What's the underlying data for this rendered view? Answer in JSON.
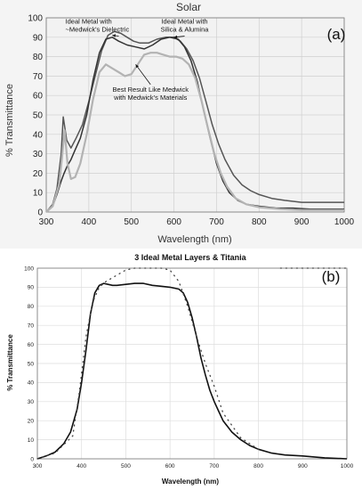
{
  "chart_data": [
    {
      "panel_label": "(a)",
      "type": "line",
      "title": "Solar",
      "xlabel": "Wavelength (nm)",
      "ylabel": "% Transmittance",
      "xlim": [
        300,
        1000
      ],
      "ylim": [
        0,
        100
      ],
      "x_ticks": [
        300,
        400,
        500,
        600,
        700,
        800,
        900,
        1000
      ],
      "y_ticks": [
        0,
        10,
        20,
        30,
        40,
        50,
        60,
        70,
        80,
        90,
        100
      ],
      "grid": true,
      "plot_background": "#f2f2f2",
      "colors": {
        "series_a": "#555555",
        "series_b": "#333333",
        "series_c": "#b3b3b3"
      },
      "annotations": [
        {
          "text": [
            "Ideal Metal with",
            "~Medwick's Dielectric"
          ],
          "x": 345,
          "y": 97,
          "arrow_to": [
            455,
            91
          ]
        },
        {
          "text": [
            "Ideal Metal with",
            "Silica & Alumina"
          ],
          "x": 625,
          "y": 97,
          "arrow_to": [
            600,
            90
          ]
        },
        {
          "text": [
            "Best Result Like Medwick",
            "with Medwick's Materials"
          ],
          "x": 545,
          "y": 62,
          "arrow_to": [
            510,
            76
          ]
        }
      ],
      "series": [
        {
          "x": [
            300,
            315,
            325,
            335,
            340,
            348,
            358,
            370,
            385,
            400,
            415,
            430,
            445,
            460,
            475,
            490,
            505,
            520,
            540,
            560,
            580,
            600,
            615,
            630,
            645,
            660,
            675,
            690,
            705,
            720,
            740,
            760,
            780,
            800,
            830,
            860,
            900,
            950,
            1000
          ],
          "y": [
            0,
            4,
            12,
            30,
            49,
            37,
            33,
            38,
            45,
            57,
            70,
            83,
            91,
            93,
            92,
            90,
            88,
            87,
            87,
            89,
            90,
            90,
            88,
            84,
            78,
            69,
            57,
            45,
            35,
            27,
            19,
            14,
            11,
            9,
            7,
            6,
            5,
            5,
            5
          ]
        },
        {
          "x": [
            300,
            315,
            325,
            335,
            342,
            350,
            358,
            368,
            380,
            395,
            410,
            425,
            440,
            455,
            470,
            490,
            510,
            530,
            550,
            570,
            590,
            610,
            625,
            640,
            655,
            670,
            685,
            700,
            715,
            730,
            750,
            770,
            800,
            840,
            880,
            920,
            960,
            1000
          ],
          "y": [
            0,
            3,
            9,
            16,
            20,
            24,
            27,
            32,
            38,
            50,
            68,
            82,
            89,
            90,
            88,
            86,
            85,
            84,
            86,
            89,
            90,
            89,
            85,
            78,
            67,
            52,
            38,
            25,
            16,
            10,
            6,
            4,
            3,
            2,
            2,
            1.5,
            1.5,
            1.5
          ]
        },
        {
          "x": [
            300,
            315,
            322,
            330,
            337,
            343,
            350,
            358,
            368,
            380,
            395,
            410,
            425,
            440,
            455,
            470,
            485,
            500,
            515,
            530,
            545,
            560,
            575,
            590,
            605,
            620,
            635,
            650,
            665,
            680,
            695,
            710,
            725,
            745,
            770,
            800,
            850,
            900,
            950,
            1000
          ],
          "y": [
            0,
            3,
            8,
            14,
            28,
            42,
            25,
            17,
            18,
            25,
            40,
            58,
            72,
            76,
            74,
            72,
            70,
            71,
            76,
            81,
            82,
            82,
            81,
            80,
            80,
            79,
            76,
            69,
            57,
            43,
            30,
            20,
            13,
            7,
            4,
            2.5,
            1.5,
            1,
            1,
            1
          ]
        }
      ]
    },
    {
      "panel_label": "(b)",
      "type": "line",
      "title": "3 Ideal Metal Layers & Titania",
      "xlabel": "Wavelength (nm)",
      "ylabel": "% Transmittance",
      "xlim": [
        300,
        1000
      ],
      "ylim": [
        0,
        100
      ],
      "x_ticks": [
        300,
        400,
        500,
        600,
        700,
        800,
        900,
        1000
      ],
      "y_ticks": [
        0,
        10,
        20,
        30,
        40,
        50,
        60,
        70,
        80,
        90,
        100
      ],
      "grid": true,
      "colors": {
        "solid": "#111111",
        "dotted": "#444444"
      },
      "series": [
        {
          "style": "solid",
          "x": [
            300,
            320,
            340,
            360,
            375,
            390,
            400,
            410,
            420,
            430,
            440,
            450,
            460,
            470,
            480,
            500,
            520,
            540,
            560,
            580,
            600,
            620,
            630,
            640,
            650,
            660,
            670,
            680,
            690,
            700,
            710,
            720,
            740,
            760,
            780,
            800,
            830,
            860,
            900,
            950,
            1000
          ],
          "y": [
            0,
            1.5,
            3.5,
            8,
            14,
            26,
            40,
            57,
            76,
            87,
            91,
            92,
            91.5,
            91,
            91,
            91.5,
            92,
            92,
            91,
            90.5,
            90,
            89,
            87,
            82,
            74,
            64,
            53,
            44,
            36,
            30,
            25,
            20,
            14,
            10,
            7,
            5,
            3,
            2,
            1.5,
            0.5,
            0
          ]
        },
        {
          "style": "dotted",
          "x": [
            300,
            340,
            380,
            395,
            410,
            425,
            440,
            455,
            470,
            485,
            500,
            520,
            540,
            560,
            580,
            600,
            620,
            640,
            660,
            680,
            700,
            720,
            760,
            800,
            850,
            860,
            880,
            900,
            920,
            950,
            1000
          ],
          "y": [
            0,
            3,
            12,
            35,
            64,
            82,
            90,
            93,
            95,
            97,
            99,
            100,
            100,
            100,
            100,
            99,
            93,
            80,
            64,
            50,
            38,
            24,
            11,
            5,
            100,
            100,
            100,
            100,
            100,
            100,
            100
          ]
        }
      ]
    }
  ]
}
